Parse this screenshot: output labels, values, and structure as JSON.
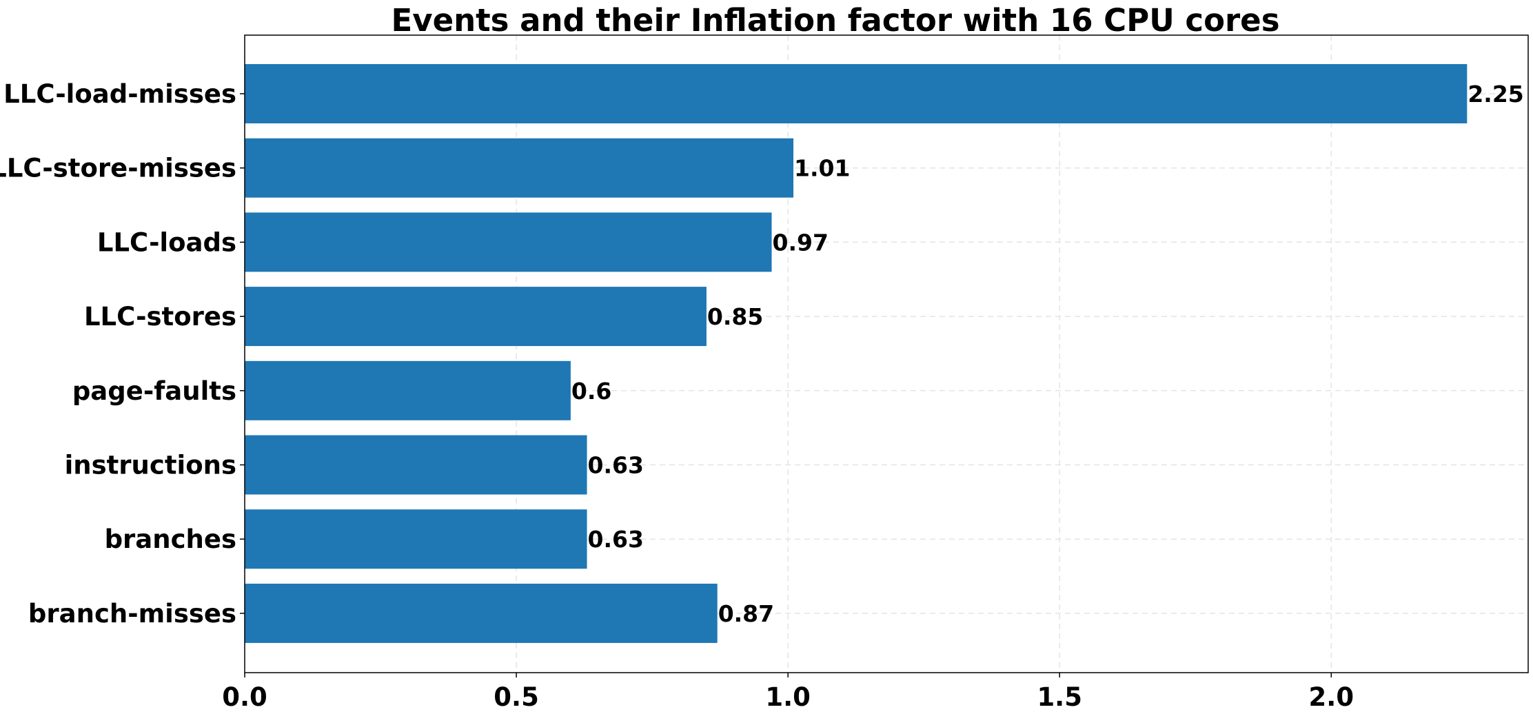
{
  "chart_data": {
    "type": "bar",
    "orientation": "horizontal",
    "title": "Events and their Inflation factor with 16 CPU cores",
    "xlabel": "",
    "ylabel": "",
    "categories": [
      "LLC-load-misses",
      "LLC-store-misses",
      "LLC-loads",
      "LLC-stores",
      "page-faults",
      "instructions",
      "branches",
      "branch-misses"
    ],
    "values": [
      2.25,
      1.01,
      0.97,
      0.85,
      0.6,
      0.63,
      0.63,
      0.87
    ],
    "value_labels": [
      "2.25",
      "1.01",
      "0.97",
      "0.85",
      "0.6",
      "0.63",
      "0.63",
      "0.87"
    ],
    "xlim": [
      0,
      2.3625
    ],
    "xticks": [
      0.0,
      0.5,
      1.0,
      1.5,
      2.0
    ],
    "xtick_labels": [
      "0.0",
      "0.5",
      "1.0",
      "1.5",
      "2.0"
    ],
    "grid": true,
    "legend": "none",
    "colors": {
      "bar": "#1f77b4",
      "text": "#000000",
      "grid": "#e4e4e4"
    }
  }
}
